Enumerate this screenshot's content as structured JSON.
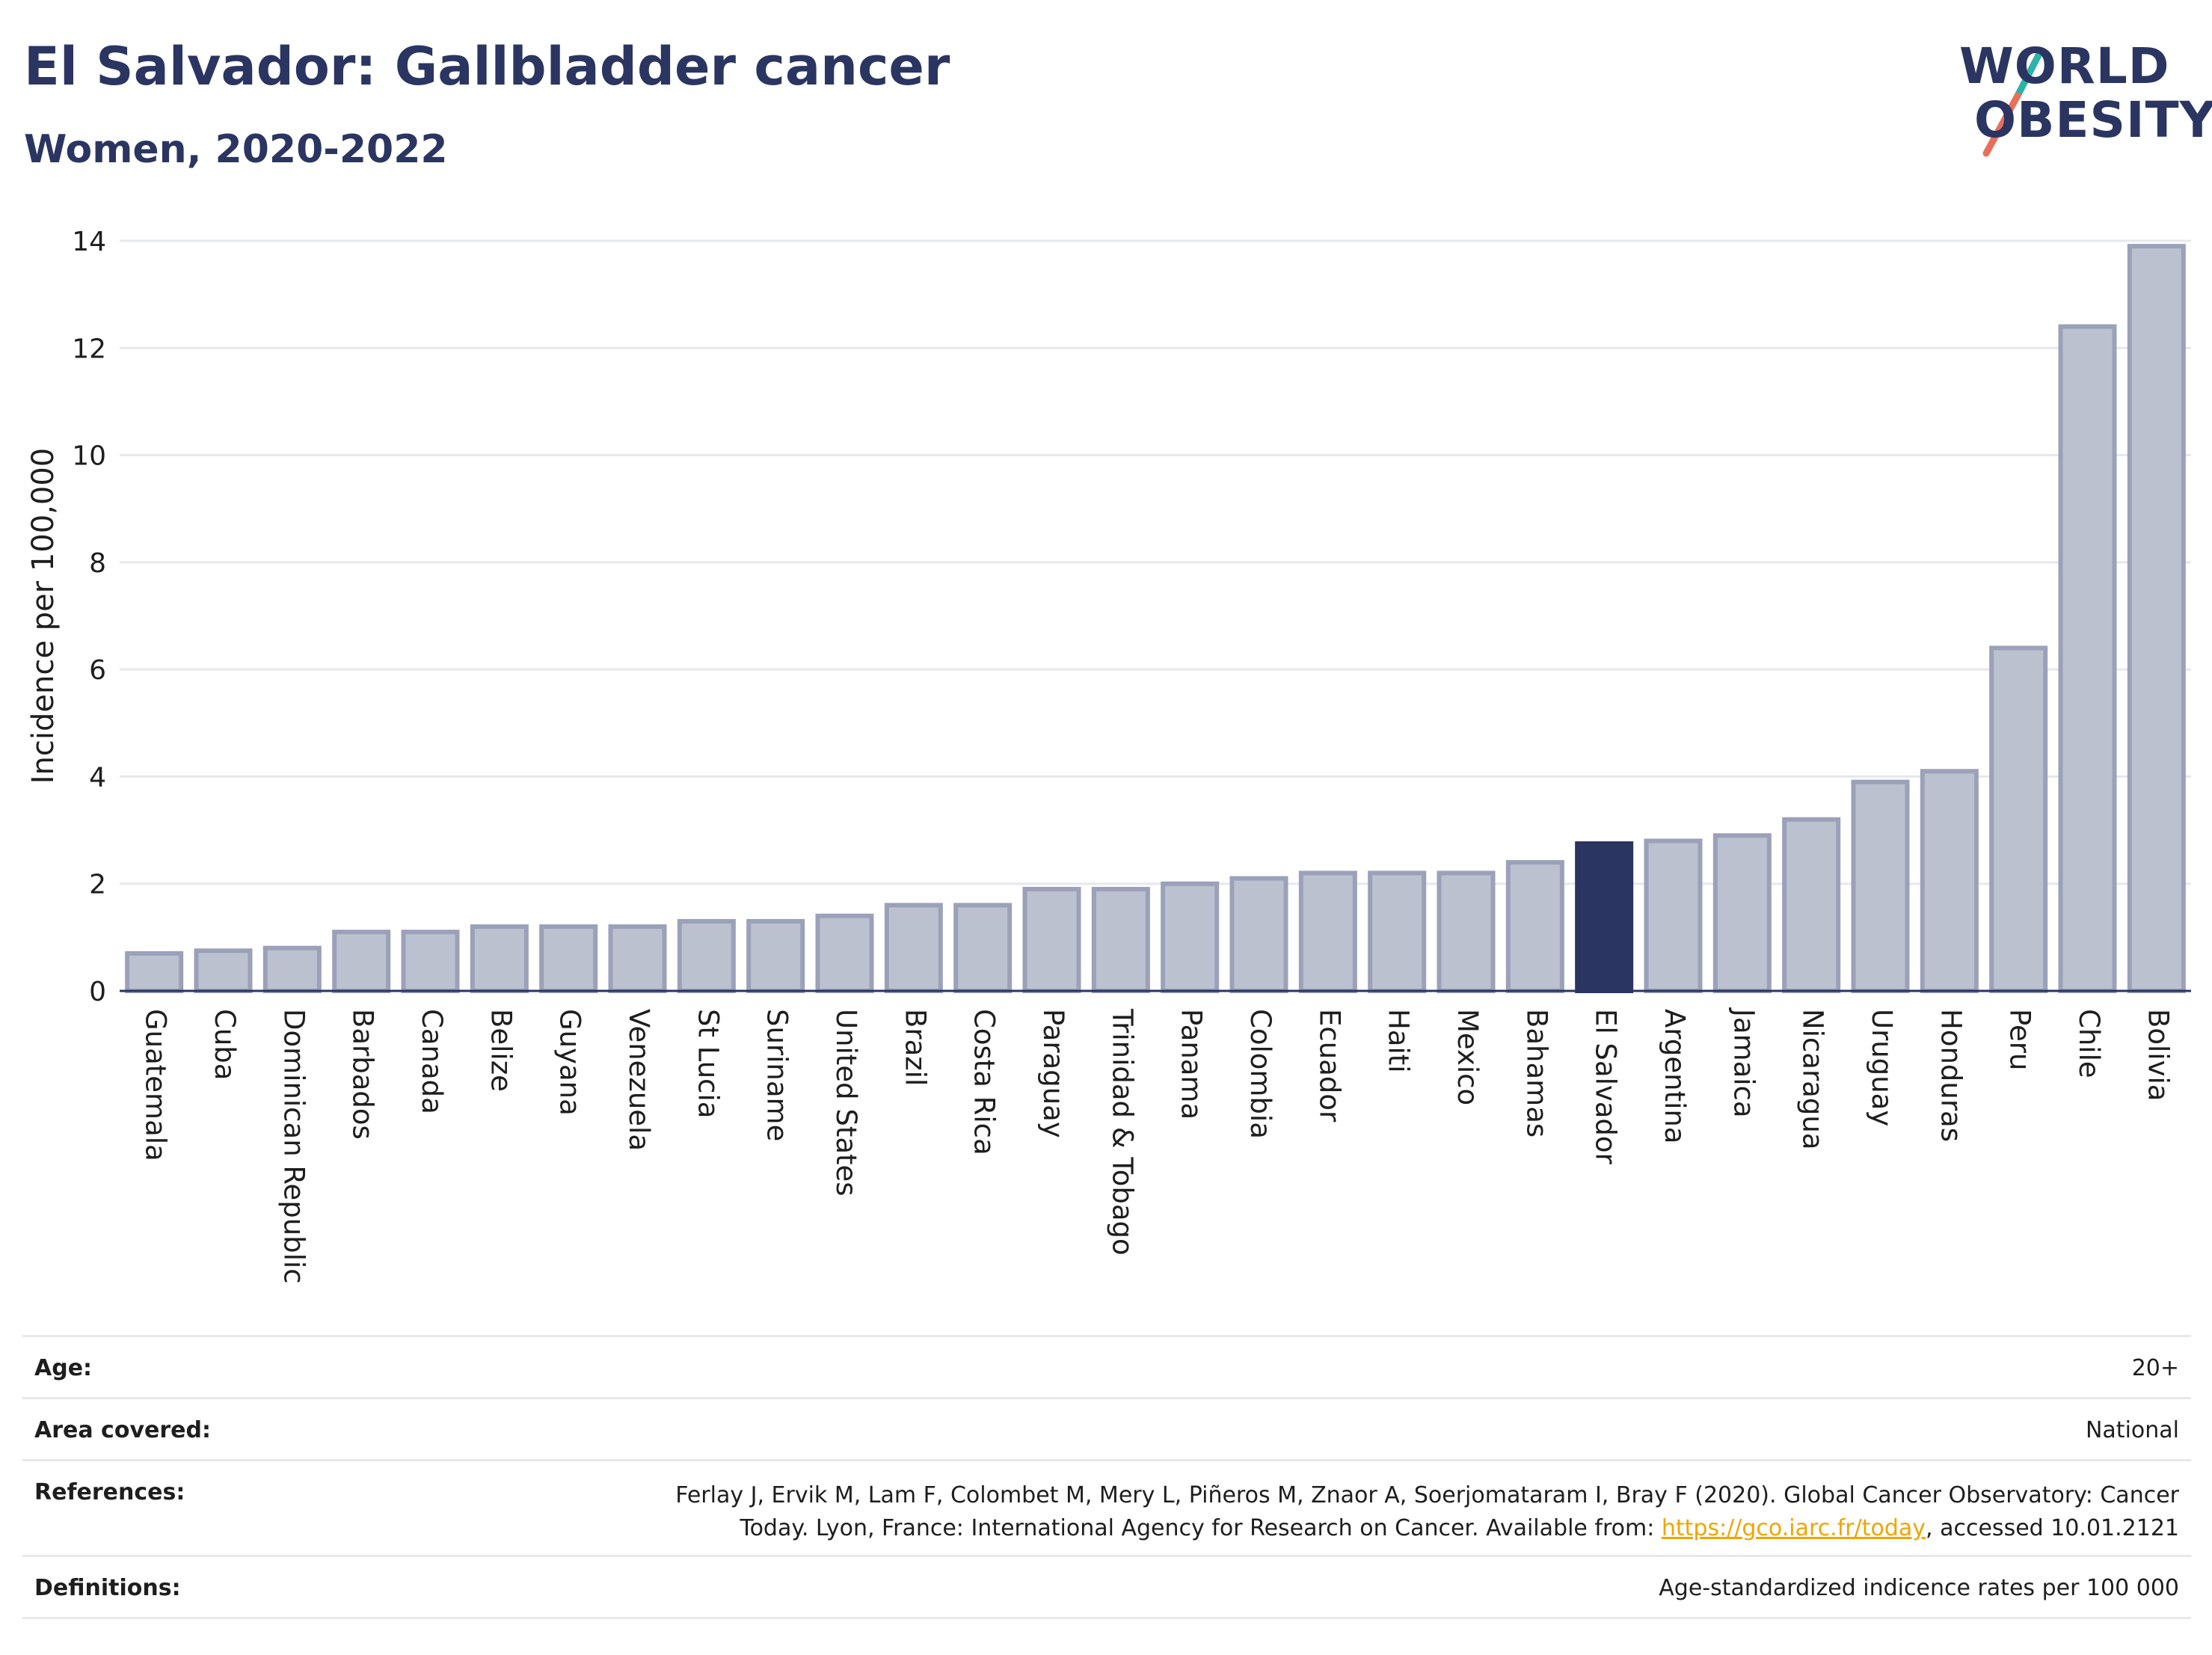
{
  "header": {
    "title": "El Salvador: Gallbladder cancer",
    "subtitle": "Women, 2020-2022"
  },
  "logo": {
    "line1": "WORLD",
    "line2": "OBESITY",
    "accent_colors": [
      "#2bb3a8",
      "#e8705a"
    ]
  },
  "chart_data": {
    "type": "bar",
    "ylabel": "Incidence per 100,000",
    "ylim": [
      0,
      14
    ],
    "yticks": [
      0,
      2,
      4,
      6,
      8,
      10,
      12,
      14
    ],
    "grid": true,
    "highlight": "El Salvador",
    "colors": {
      "bar": "#bcc1d0",
      "bar_edge": "#9aa1b8",
      "highlight": "#2b3561"
    },
    "categories": [
      "Guatemala",
      "Cuba",
      "Dominican Republic",
      "Barbados",
      "Canada",
      "Belize",
      "Guyana",
      "Venezuela",
      "St Lucia",
      "Suriname",
      "United States",
      "Brazil",
      "Costa Rica",
      "Paraguay",
      "Trinidad & Tobago",
      "Panama",
      "Colombia",
      "Ecuador",
      "Haiti",
      "Mexico",
      "Bahamas",
      "El Salvador",
      "Argentina",
      "Jamaica",
      "Nicaragua",
      "Uruguay",
      "Honduras",
      "Peru",
      "Chile",
      "Bolivia"
    ],
    "values": [
      0.7,
      0.75,
      0.8,
      1.1,
      1.1,
      1.2,
      1.2,
      1.2,
      1.3,
      1.3,
      1.4,
      1.6,
      1.6,
      1.9,
      1.9,
      2.0,
      2.1,
      2.2,
      2.2,
      2.2,
      2.4,
      2.75,
      2.8,
      2.9,
      3.2,
      3.9,
      4.1,
      6.4,
      12.4,
      13.9
    ]
  },
  "info": {
    "age_label": "Age:",
    "age_value": "20+",
    "area_label": "Area covered:",
    "area_value": "National",
    "references_label": "References:",
    "references_line1": "Ferlay J, Ervik M, Lam F, Colombet M, Mery L, Piñeros M, Znaor A, Soerjomataram I, Bray F (2020). Global Cancer Observatory: Cancer",
    "references_line2_pre": "Today. Lyon, France: International Agency for Research on Cancer. Available from: ",
    "references_link": "https://gco.iarc.fr/today",
    "references_line2_post": ", accessed 10.01.2121",
    "definitions_label": "Definitions:",
    "definitions_value": "Age-standardized indicence rates per 100 000"
  }
}
